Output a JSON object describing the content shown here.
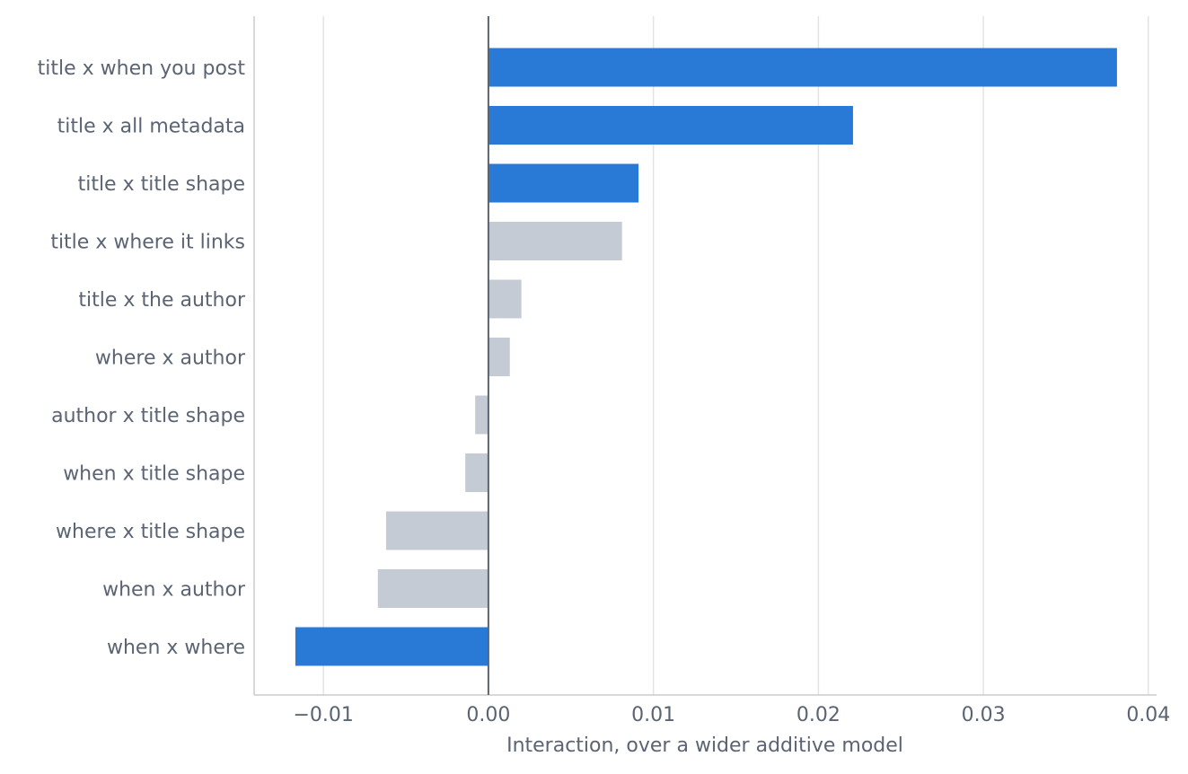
{
  "chart_data": {
    "type": "bar",
    "orientation": "horizontal",
    "xlabel": "Interaction, over a wider additive model",
    "xlim": [
      -0.0142,
      0.0405
    ],
    "xticks": [
      -0.01,
      0.0,
      0.01,
      0.02,
      0.03,
      0.04
    ],
    "xtick_labels": [
      "−0.01",
      "0.00",
      "0.01",
      "0.02",
      "0.03",
      "0.04"
    ],
    "grid": "vertical",
    "categories": [
      "title x when you post",
      "title x all metadata",
      "title x title shape",
      "title x where it links",
      "title x the author",
      "where x author",
      "author x title shape",
      "when x title shape",
      "where x title shape",
      "when x author",
      "when x where"
    ],
    "values": [
      0.0381,
      0.0221,
      0.0091,
      0.0081,
      0.002,
      0.0013,
      -0.0008,
      -0.0014,
      -0.0062,
      -0.0067,
      -0.0117
    ],
    "highlighted": [
      true,
      true,
      true,
      false,
      false,
      false,
      false,
      false,
      false,
      false,
      true
    ],
    "colors": {
      "highlight": "#2979d6",
      "muted": "#c5cbd5",
      "grid": "#e3e3e3",
      "zero_line": "#5a6472",
      "axis": "#cccccc"
    }
  }
}
